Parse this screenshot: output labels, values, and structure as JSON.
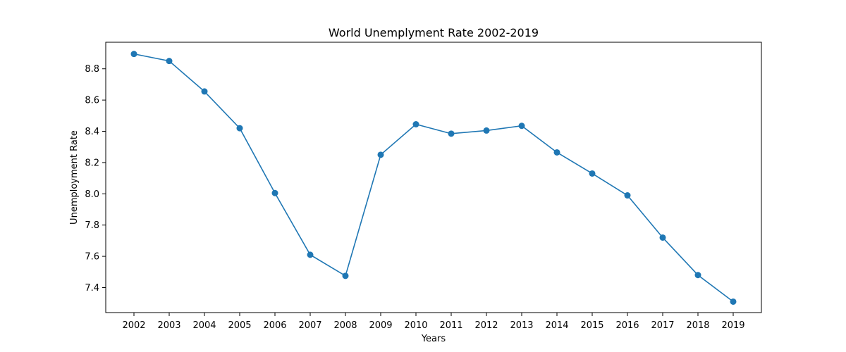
{
  "chart_data": {
    "type": "line",
    "title": "World Unemplyment Rate 2002-2019",
    "xlabel": "Years",
    "ylabel": "Unemployment Rate",
    "categories": [
      "2002",
      "2003",
      "2004",
      "2005",
      "2006",
      "2007",
      "2008",
      "2009",
      "2010",
      "2011",
      "2012",
      "2013",
      "2014",
      "2015",
      "2016",
      "2017",
      "2018",
      "2019"
    ],
    "series": [
      {
        "values": [
          8.895,
          8.85,
          8.655,
          8.42,
          8.005,
          7.61,
          7.475,
          8.25,
          8.445,
          8.385,
          8.405,
          8.435,
          8.265,
          8.13,
          7.99,
          7.72,
          7.48,
          7.31
        ],
        "color": "#1f77b4",
        "marker": "circle"
      }
    ],
    "ylim": [
      7.24,
      8.97
    ],
    "yticks": [
      "7.4",
      "7.6",
      "7.8",
      "8.0",
      "8.2",
      "8.4",
      "8.6",
      "8.8"
    ],
    "grid": false,
    "legend": "none"
  }
}
